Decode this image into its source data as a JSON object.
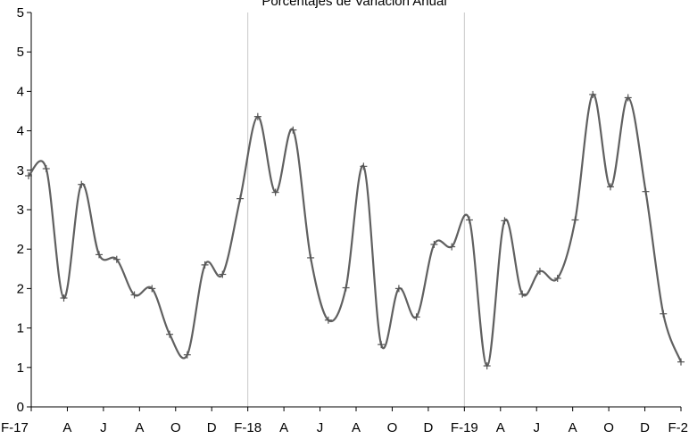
{
  "chart_data": {
    "type": "line",
    "title": "Porcentajes de Variación Anual",
    "xlabel": "",
    "ylabel": "",
    "x_tick_labels": [
      "F-17",
      "A",
      "J",
      "A",
      "O",
      "D",
      "F-18",
      "A",
      "J",
      "A",
      "O",
      "D",
      "F-19",
      "A",
      "J",
      "A",
      "O",
      "D",
      "F-2"
    ],
    "y_tick_labels": [
      "0",
      "1",
      "1",
      "2",
      "2",
      "3",
      "3",
      "4",
      "4",
      "5",
      "5"
    ],
    "ylim": [
      0,
      5
    ],
    "grid": "vertical lines at F-18 and F-19",
    "smoothed": true,
    "marker": "plus",
    "line_color": "#606060",
    "series": [
      {
        "values": [
          2.93,
          3.02,
          1.38,
          2.82,
          1.93,
          1.87,
          1.42,
          1.5,
          0.92,
          0.66,
          1.8,
          1.68,
          2.64,
          3.68,
          2.72,
          3.51,
          1.89,
          1.1,
          1.51,
          3.05,
          0.79,
          1.5,
          1.14,
          2.06,
          2.03,
          2.37,
          0.52,
          2.36,
          1.43,
          1.72,
          1.63,
          2.37,
          3.96,
          2.79,
          3.92,
          2.73,
          1.18,
          0.57
        ]
      }
    ]
  }
}
